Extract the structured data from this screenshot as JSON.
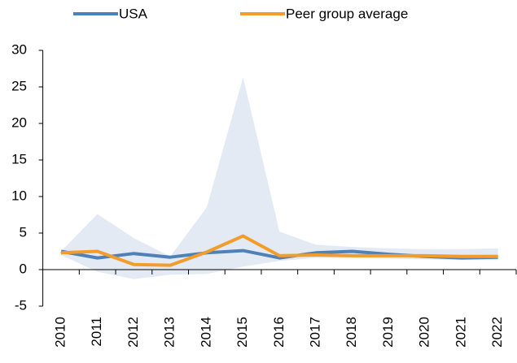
{
  "chart_data": {
    "type": "line",
    "categories": [
      "2010",
      "2011",
      "2012",
      "2013",
      "2014",
      "2015",
      "2016",
      "2017",
      "2018",
      "2019",
      "2020",
      "2021",
      "2022"
    ],
    "series": [
      {
        "name": "USA",
        "color": "#4f81b9",
        "values": [
          2.5,
          1.6,
          2.2,
          1.7,
          2.3,
          2.6,
          1.6,
          2.3,
          2.5,
          2.1,
          1.8,
          1.6,
          1.7
        ]
      },
      {
        "name": "Peer group average",
        "color": "#f39c2b",
        "values": [
          2.3,
          2.5,
          0.7,
          0.6,
          2.4,
          4.6,
          1.9,
          2.0,
          1.9,
          1.9,
          1.9,
          1.8,
          1.8
        ]
      }
    ],
    "band": {
      "color": "#e3eaf4",
      "upper": [
        2.5,
        7.6,
        4.3,
        1.8,
        8.5,
        26.3,
        5.2,
        3.4,
        3.1,
        2.9,
        2.8,
        2.8,
        2.9
      ],
      "lower": [
        2.0,
        -0.3,
        -1.3,
        -0.7,
        -0.6,
        0.4,
        1.2,
        1.6,
        1.6,
        1.5,
        1.4,
        1.3,
        1.3
      ]
    },
    "ylim": [
      -5,
      30
    ],
    "yticks": [
      -5,
      0,
      5,
      10,
      15,
      20,
      25,
      30
    ],
    "legend": "top"
  }
}
